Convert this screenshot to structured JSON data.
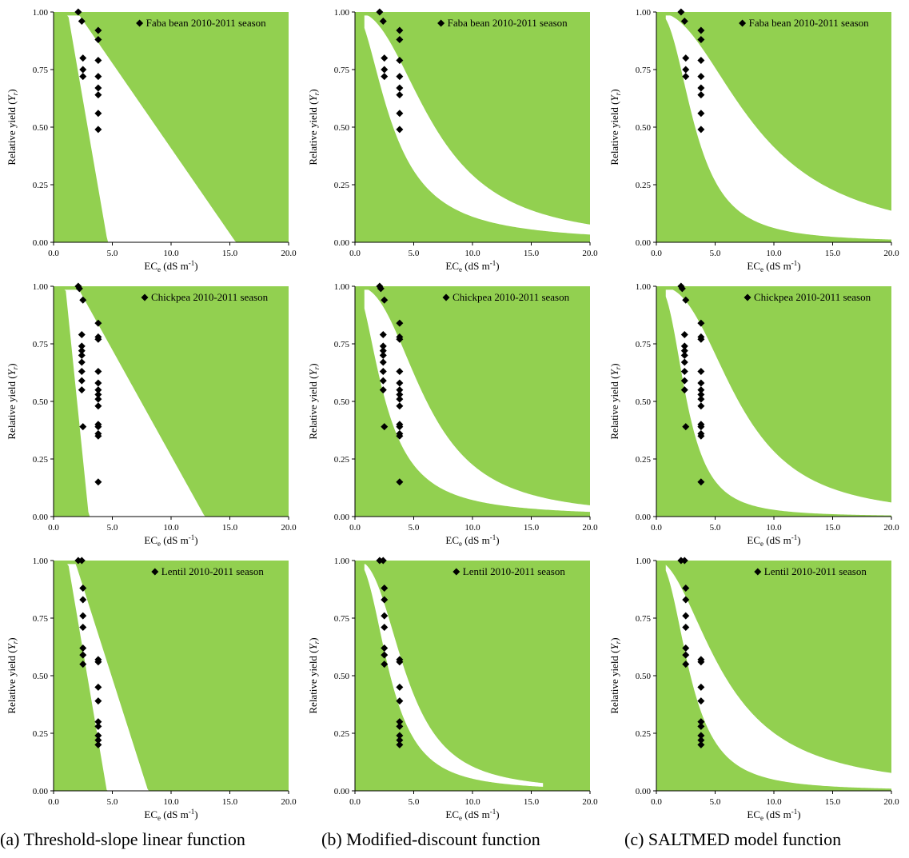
{
  "captions": {
    "a": "(a) Threshold-slope linear function",
    "b": "(b) Modified-discount function",
    "c": "(c) SALTMED model function"
  },
  "colors": {
    "fill": "#92D050",
    "background": "#FFFFFF",
    "marker": "#000000"
  },
  "chart_data": [
    {
      "type": "scatter",
      "row": 0,
      "col": 0,
      "legend": "Faba bean 2010-2011 season",
      "legend_position": "top-right",
      "xlabel": "EC_e (dS m^-1)",
      "ylabel": "Relative yield (Y_r)",
      "xlim": [
        0,
        20
      ],
      "ylim": [
        0,
        1
      ],
      "xticks": [
        "0.0",
        "5.0",
        "10.0",
        "15.0",
        "20.0"
      ],
      "yticks": [
        "0.00",
        "0.25",
        "0.50",
        "0.75",
        "1.00"
      ],
      "band": {
        "model": "linear",
        "lower": {
          "t": 1.2,
          "b": 0.294
        },
        "upper": {
          "t": 2.0,
          "b": 0.074
        }
      },
      "points": [
        [
          2.1,
          1.0
        ],
        [
          2.4,
          0.96
        ],
        [
          2.5,
          0.8
        ],
        [
          2.5,
          0.75
        ],
        [
          2.5,
          0.72
        ],
        [
          3.8,
          0.92
        ],
        [
          3.8,
          0.88
        ],
        [
          3.8,
          0.79
        ],
        [
          3.8,
          0.72
        ],
        [
          3.8,
          0.67
        ],
        [
          3.8,
          0.64
        ],
        [
          3.8,
          0.56
        ],
        [
          3.8,
          0.49
        ]
      ]
    },
    {
      "type": "scatter",
      "row": 0,
      "col": 1,
      "legend": "Faba bean 2010-2011 season",
      "legend_position": "top-right",
      "xlabel": "EC_e (dS m^-1)",
      "ylabel": "Relative yield (Y_r)",
      "xlim": [
        0,
        20
      ],
      "ylim": [
        0,
        1
      ],
      "xticks": [
        "0.0",
        "5.0",
        "10.0",
        "15.0",
        "20.0"
      ],
      "yticks": [
        "0.00",
        "0.25",
        "0.50",
        "0.75",
        "1.00"
      ],
      "band": {
        "model": "logistic",
        "lower": {
          "x50": 3.25,
          "p": 1.85
        },
        "upper": {
          "x50": 6.8,
          "p": 2.3
        }
      },
      "points": [
        [
          2.1,
          1.0
        ],
        [
          2.4,
          0.96
        ],
        [
          2.5,
          0.8
        ],
        [
          2.5,
          0.75
        ],
        [
          2.5,
          0.72
        ],
        [
          3.8,
          0.92
        ],
        [
          3.8,
          0.88
        ],
        [
          3.8,
          0.79
        ],
        [
          3.8,
          0.72
        ],
        [
          3.8,
          0.67
        ],
        [
          3.8,
          0.64
        ],
        [
          3.8,
          0.56
        ],
        [
          3.8,
          0.49
        ]
      ]
    },
    {
      "type": "scatter",
      "row": 0,
      "col": 2,
      "legend": "Faba bean 2010-2011 season",
      "legend_position": "top-right",
      "xlabel": "EC_e (dS m^-1)",
      "ylabel": "Relative yield (Y_r)",
      "xlim": [
        0,
        20
      ],
      "ylim": [
        0,
        1
      ],
      "xticks": [
        "0.0",
        "5.0",
        "10.0",
        "15.0",
        "20.0"
      ],
      "yticks": [
        "0.00",
        "0.25",
        "0.50",
        "0.75",
        "1.00"
      ],
      "band": {
        "model": "logistic",
        "lower": {
          "x50": 3.3,
          "p": 2.45
        },
        "upper": {
          "x50": 8.5,
          "p": 2.15
        }
      },
      "points": [
        [
          2.1,
          1.0
        ],
        [
          2.4,
          0.96
        ],
        [
          2.5,
          0.8
        ],
        [
          2.5,
          0.75
        ],
        [
          2.5,
          0.72
        ],
        [
          3.8,
          0.92
        ],
        [
          3.8,
          0.88
        ],
        [
          3.8,
          0.79
        ],
        [
          3.8,
          0.72
        ],
        [
          3.8,
          0.67
        ],
        [
          3.8,
          0.64
        ],
        [
          3.8,
          0.56
        ],
        [
          3.8,
          0.49
        ]
      ]
    },
    {
      "type": "scatter",
      "row": 1,
      "col": 0,
      "legend": "Chickpea 2010-2011 season",
      "legend_position": "top-right",
      "xlabel": "EC_e (dS m^-1)",
      "ylabel": "Relative yield (Y_r)",
      "xlim": [
        0,
        20
      ],
      "ylim": [
        0,
        1
      ],
      "xticks": [
        "0.0",
        "5.0",
        "10.0",
        "15.0",
        "20.0"
      ],
      "yticks": [
        "0.00",
        "0.25",
        "0.50",
        "0.75",
        "1.00"
      ],
      "band": {
        "model": "linear",
        "lower": {
          "t": 1.0,
          "b": 0.5
        },
        "upper": {
          "t": 2.0,
          "b": 0.092
        }
      },
      "points": [
        [
          2.1,
          1.0
        ],
        [
          2.2,
          0.99
        ],
        [
          2.5,
          0.94
        ],
        [
          2.4,
          0.79
        ],
        [
          2.4,
          0.74
        ],
        [
          2.4,
          0.72
        ],
        [
          2.4,
          0.7
        ],
        [
          2.4,
          0.67
        ],
        [
          2.4,
          0.63
        ],
        [
          2.4,
          0.59
        ],
        [
          2.4,
          0.55
        ],
        [
          2.5,
          0.39
        ],
        [
          3.8,
          0.84
        ],
        [
          3.8,
          0.78
        ],
        [
          3.8,
          0.77
        ],
        [
          3.8,
          0.63
        ],
        [
          3.8,
          0.58
        ],
        [
          3.8,
          0.55
        ],
        [
          3.8,
          0.53
        ],
        [
          3.8,
          0.51
        ],
        [
          3.8,
          0.48
        ],
        [
          3.8,
          0.4
        ],
        [
          3.8,
          0.39
        ],
        [
          3.8,
          0.36
        ],
        [
          3.8,
          0.35
        ],
        [
          3.8,
          0.15
        ]
      ]
    },
    {
      "type": "scatter",
      "row": 1,
      "col": 1,
      "legend": "Chickpea 2010-2011 season",
      "legend_position": "top-right",
      "xlabel": "EC_e (dS m^-1)",
      "ylabel": "Relative yield (Y_r)",
      "xlim": [
        0,
        20
      ],
      "ylim": [
        0,
        1
      ],
      "xticks": [
        "0.0",
        "5.0",
        "10.0",
        "15.0",
        "20.0"
      ],
      "yticks": [
        "0.00",
        "0.25",
        "0.50",
        "0.75",
        "1.00"
      ],
      "band": {
        "model": "logistic",
        "lower": {
          "x50": 2.6,
          "p": 1.9
        },
        "upper": {
          "x50": 6.1,
          "p": 2.5
        }
      },
      "points": [
        [
          2.1,
          1.0
        ],
        [
          2.2,
          0.99
        ],
        [
          2.5,
          0.94
        ],
        [
          2.4,
          0.79
        ],
        [
          2.4,
          0.74
        ],
        [
          2.4,
          0.72
        ],
        [
          2.4,
          0.7
        ],
        [
          2.4,
          0.67
        ],
        [
          2.4,
          0.63
        ],
        [
          2.4,
          0.59
        ],
        [
          2.4,
          0.55
        ],
        [
          2.5,
          0.39
        ],
        [
          3.8,
          0.84
        ],
        [
          3.8,
          0.78
        ],
        [
          3.8,
          0.77
        ],
        [
          3.8,
          0.63
        ],
        [
          3.8,
          0.58
        ],
        [
          3.8,
          0.55
        ],
        [
          3.8,
          0.53
        ],
        [
          3.8,
          0.51
        ],
        [
          3.8,
          0.48
        ],
        [
          3.8,
          0.4
        ],
        [
          3.8,
          0.39
        ],
        [
          3.8,
          0.36
        ],
        [
          3.8,
          0.35
        ],
        [
          3.8,
          0.15
        ]
      ]
    },
    {
      "type": "scatter",
      "row": 1,
      "col": 2,
      "legend": "Chickpea 2010-2011 season",
      "legend_position": "top-right",
      "xlabel": "EC_e (dS m^-1)",
      "ylabel": "Relative yield (Y_r)",
      "xlim": [
        0,
        20
      ],
      "ylim": [
        0,
        1
      ],
      "xticks": [
        "0.0",
        "5.0",
        "10.0",
        "15.0",
        "20.0"
      ],
      "yticks": [
        "0.00",
        "0.25",
        "0.50",
        "0.75",
        "1.00"
      ],
      "band": {
        "model": "logistic",
        "lower": {
          "x50": 2.6,
          "p": 2.6
        },
        "upper": {
          "x50": 7.0,
          "p": 2.6
        }
      },
      "points": [
        [
          2.1,
          1.0
        ],
        [
          2.2,
          0.99
        ],
        [
          2.5,
          0.94
        ],
        [
          2.4,
          0.79
        ],
        [
          2.4,
          0.74
        ],
        [
          2.4,
          0.72
        ],
        [
          2.4,
          0.7
        ],
        [
          2.4,
          0.67
        ],
        [
          2.4,
          0.63
        ],
        [
          2.4,
          0.59
        ],
        [
          2.4,
          0.55
        ],
        [
          2.5,
          0.39
        ],
        [
          3.8,
          0.84
        ],
        [
          3.8,
          0.78
        ],
        [
          3.8,
          0.77
        ],
        [
          3.8,
          0.63
        ],
        [
          3.8,
          0.58
        ],
        [
          3.8,
          0.55
        ],
        [
          3.8,
          0.53
        ],
        [
          3.8,
          0.51
        ],
        [
          3.8,
          0.48
        ],
        [
          3.8,
          0.4
        ],
        [
          3.8,
          0.39
        ],
        [
          3.8,
          0.36
        ],
        [
          3.8,
          0.35
        ],
        [
          3.8,
          0.15
        ]
      ]
    },
    {
      "type": "scatter",
      "row": 2,
      "col": 0,
      "legend": "Lentil 2010-2011 season",
      "legend_position": "top-right",
      "xlabel": "EC_e (dS m^-1)",
      "ylabel": "Relative yield (Y_r)",
      "xlim": [
        0,
        20
      ],
      "ylim": [
        0,
        1
      ],
      "xticks": [
        "0.0",
        "5.0",
        "10.0",
        "15.0",
        "20.0"
      ],
      "yticks": [
        "0.00",
        "0.25",
        "0.50",
        "0.75",
        "1.00"
      ],
      "band": {
        "model": "linear",
        "lower": {
          "t": 1.2,
          "b": 0.3
        },
        "upper": {
          "t": 1.8,
          "b": 0.16
        }
      },
      "points": [
        [
          2.1,
          1.0
        ],
        [
          2.4,
          1.0
        ],
        [
          2.5,
          0.88
        ],
        [
          2.5,
          0.83
        ],
        [
          2.5,
          0.76
        ],
        [
          2.5,
          0.71
        ],
        [
          2.5,
          0.62
        ],
        [
          2.5,
          0.59
        ],
        [
          2.5,
          0.55
        ],
        [
          3.8,
          0.57
        ],
        [
          3.8,
          0.56
        ],
        [
          3.8,
          0.45
        ],
        [
          3.8,
          0.39
        ],
        [
          3.8,
          0.3
        ],
        [
          3.8,
          0.28
        ],
        [
          3.8,
          0.24
        ],
        [
          3.8,
          0.22
        ],
        [
          3.8,
          0.2
        ]
      ]
    },
    {
      "type": "scatter",
      "row": 2,
      "col": 1,
      "legend": "Lentil 2010-2011 season",
      "legend_position": "top-right",
      "xlabel": "EC_e (dS m^-1)",
      "ylabel": "Relative yield (Y_r)",
      "xlim": [
        0,
        20
      ],
      "ylim": [
        0,
        1
      ],
      "xticks": [
        "0.0",
        "5.0",
        "10.0",
        "15.0",
        "20.0"
      ],
      "yticks": [
        "0.00",
        "0.25",
        "0.50",
        "0.75",
        "1.00"
      ],
      "band": {
        "model": "logistic",
        "lower": {
          "x50": 3.0,
          "p": 2.4
        },
        "upper": {
          "x50": 4.4,
          "p": 2.6
        },
        "xend": 16
      },
      "points": [
        [
          2.1,
          1.0
        ],
        [
          2.4,
          1.0
        ],
        [
          2.5,
          0.88
        ],
        [
          2.5,
          0.83
        ],
        [
          2.5,
          0.76
        ],
        [
          2.5,
          0.71
        ],
        [
          2.5,
          0.62
        ],
        [
          2.5,
          0.59
        ],
        [
          2.5,
          0.55
        ],
        [
          3.8,
          0.57
        ],
        [
          3.8,
          0.56
        ],
        [
          3.8,
          0.45
        ],
        [
          3.8,
          0.39
        ],
        [
          3.8,
          0.3
        ],
        [
          3.8,
          0.28
        ],
        [
          3.8,
          0.24
        ],
        [
          3.8,
          0.22
        ],
        [
          3.8,
          0.2
        ]
      ]
    },
    {
      "type": "scatter",
      "row": 2,
      "col": 2,
      "legend": "Lentil 2010-2011 season",
      "legend_position": "top-right",
      "xlabel": "EC_e (dS m^-1)",
      "ylabel": "Relative yield (Y_r)",
      "xlim": [
        0,
        20
      ],
      "ylim": [
        0,
        1
      ],
      "xticks": [
        "0.0",
        "5.0",
        "10.0",
        "15.0",
        "20.0"
      ],
      "yticks": [
        "0.00",
        "0.25",
        "0.50",
        "0.75",
        "1.00"
      ],
      "band": {
        "model": "logistic",
        "lower": {
          "x50": 2.9,
          "p": 2.4
        },
        "upper": {
          "x50": 5.8,
          "p": 2.0
        }
      },
      "points": [
        [
          2.1,
          1.0
        ],
        [
          2.4,
          1.0
        ],
        [
          2.5,
          0.88
        ],
        [
          2.5,
          0.83
        ],
        [
          2.5,
          0.76
        ],
        [
          2.5,
          0.71
        ],
        [
          2.5,
          0.62
        ],
        [
          2.5,
          0.59
        ],
        [
          2.5,
          0.55
        ],
        [
          3.8,
          0.57
        ],
        [
          3.8,
          0.56
        ],
        [
          3.8,
          0.45
        ],
        [
          3.8,
          0.39
        ],
        [
          3.8,
          0.3
        ],
        [
          3.8,
          0.28
        ],
        [
          3.8,
          0.24
        ],
        [
          3.8,
          0.22
        ],
        [
          3.8,
          0.2
        ]
      ]
    }
  ]
}
